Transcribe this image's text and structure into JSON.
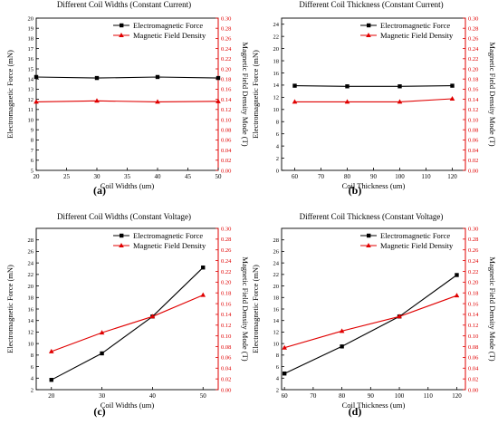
{
  "chart_data": [
    {
      "type": "line",
      "panel_label": "(a)",
      "title": "Different Coil Widths (Constant Current)",
      "xlabel": "Coil Widths (um)",
      "ylabel": "Electromagnetic Force (mN)",
      "ylabel2": "Magnetic Field Density Mode (T)",
      "xlim": [
        20,
        50
      ],
      "ylim": [
        5,
        20
      ],
      "y2lim": [
        0,
        0.3
      ],
      "xticks": [
        20,
        25,
        30,
        35,
        40,
        45,
        50
      ],
      "yticks": [
        5,
        6,
        7,
        8,
        9,
        10,
        11,
        12,
        13,
        14,
        15,
        16,
        17,
        18,
        19,
        20
      ],
      "y2ticks": [
        "0.00",
        "0.02",
        "0.04",
        "0.06",
        "0.08",
        "0.10",
        "0.12",
        "0.14",
        "0.16",
        "0.18",
        "0.20",
        "0.22",
        "0.24",
        "0.26",
        "0.28",
        "0.30"
      ],
      "legend": "top-right",
      "x": [
        20,
        30,
        40,
        50
      ],
      "series": [
        {
          "name": "Electromagnetic Force",
          "axis": "left",
          "marker": "square",
          "color": "#000000",
          "values": [
            14.2,
            14.1,
            14.2,
            14.1
          ]
        },
        {
          "name": "Magnetic Field Density",
          "axis": "right",
          "marker": "triangle",
          "color": "#e00000",
          "values": [
            0.135,
            0.137,
            0.135,
            0.136
          ]
        }
      ]
    },
    {
      "type": "line",
      "panel_label": "(b)",
      "title": "Different Coil Thickness (Constant Current)",
      "xlabel": "Coil Thickness (um)",
      "ylabel": "Electromagnetic Force (mN)",
      "ylabel2": "Magnetic Field Density Mode (T)",
      "xlim": [
        55,
        125
      ],
      "ylim": [
        0,
        25
      ],
      "y2lim": [
        0,
        0.3
      ],
      "xticks": [
        60,
        70,
        80,
        90,
        100,
        110,
        120
      ],
      "yticks": [
        0,
        2,
        4,
        6,
        8,
        10,
        12,
        14,
        16,
        18,
        20,
        22,
        24
      ],
      "y2ticks": [
        "0.00",
        "0.02",
        "0.04",
        "0.06",
        "0.08",
        "0.10",
        "0.12",
        "0.14",
        "0.16",
        "0.18",
        "0.20",
        "0.22",
        "0.24",
        "0.26",
        "0.28",
        "0.30"
      ],
      "legend": "top-right",
      "x": [
        60,
        80,
        100,
        120
      ],
      "series": [
        {
          "name": "Electromagnetic Force",
          "axis": "left",
          "marker": "square",
          "color": "#000000",
          "values": [
            13.9,
            13.8,
            13.8,
            13.9
          ]
        },
        {
          "name": "Magnetic Field Density",
          "axis": "right",
          "marker": "triangle",
          "color": "#e00000",
          "values": [
            0.135,
            0.135,
            0.135,
            0.141
          ]
        }
      ]
    },
    {
      "type": "line",
      "panel_label": "(c)",
      "title": "Different Coil Widths (Constant Voltage)",
      "xlabel": "Coil Widths (um)",
      "ylabel": "Electromagnetic Force (mN)",
      "ylabel2": "Magnetic Field Density Mode (T)",
      "xlim": [
        17,
        53
      ],
      "ylim": [
        2,
        30
      ],
      "y2lim": [
        0,
        0.3
      ],
      "xticks": [
        20,
        30,
        40,
        50
      ],
      "yticks": [
        2,
        4,
        6,
        8,
        10,
        12,
        14,
        16,
        18,
        20,
        22,
        24,
        26,
        28
      ],
      "y2ticks": [
        "0.00",
        "0.02",
        "0.04",
        "0.06",
        "0.08",
        "0.10",
        "0.12",
        "0.14",
        "0.16",
        "0.18",
        "0.20",
        "0.22",
        "0.24",
        "0.26",
        "0.28",
        "0.30"
      ],
      "legend": "top-right",
      "x": [
        20,
        30,
        40,
        50
      ],
      "series": [
        {
          "name": "Electromagnetic Force",
          "axis": "left",
          "marker": "square",
          "color": "#000000",
          "values": [
            3.7,
            8.3,
            14.7,
            23.2
          ]
        },
        {
          "name": "Magnetic Field Density",
          "axis": "right",
          "marker": "triangle",
          "color": "#e00000",
          "values": [
            0.071,
            0.106,
            0.136,
            0.176
          ]
        }
      ]
    },
    {
      "type": "line",
      "panel_label": "(d)",
      "title": "Different Coil Thickness (Constant Voltage)",
      "xlabel": "Coil Thickness (um)",
      "ylabel": "Electromagnetic Force (mN)",
      "ylabel2": "Magnetic Field Density Mode (T)",
      "xlim": [
        59,
        123
      ],
      "ylim": [
        2,
        30
      ],
      "y2lim": [
        0,
        0.3
      ],
      "xticks": [
        60,
        70,
        80,
        90,
        100,
        110,
        120
      ],
      "yticks": [
        2,
        4,
        6,
        8,
        10,
        12,
        14,
        16,
        18,
        20,
        22,
        24,
        26,
        28
      ],
      "y2ticks": [
        "0.00",
        "0.02",
        "0.04",
        "0.06",
        "0.08",
        "0.10",
        "0.12",
        "0.14",
        "0.16",
        "0.18",
        "0.20",
        "0.22",
        "0.24",
        "0.26",
        "0.28",
        "0.30"
      ],
      "legend": "top-right",
      "x": [
        60,
        80,
        100,
        120
      ],
      "series": [
        {
          "name": "Electromagnetic Force",
          "axis": "left",
          "marker": "square",
          "color": "#000000",
          "values": [
            4.8,
            9.5,
            14.7,
            21.9
          ]
        },
        {
          "name": "Magnetic Field Density",
          "axis": "right",
          "marker": "triangle",
          "color": "#e00000",
          "values": [
            0.078,
            0.109,
            0.136,
            0.175
          ]
        }
      ]
    }
  ]
}
